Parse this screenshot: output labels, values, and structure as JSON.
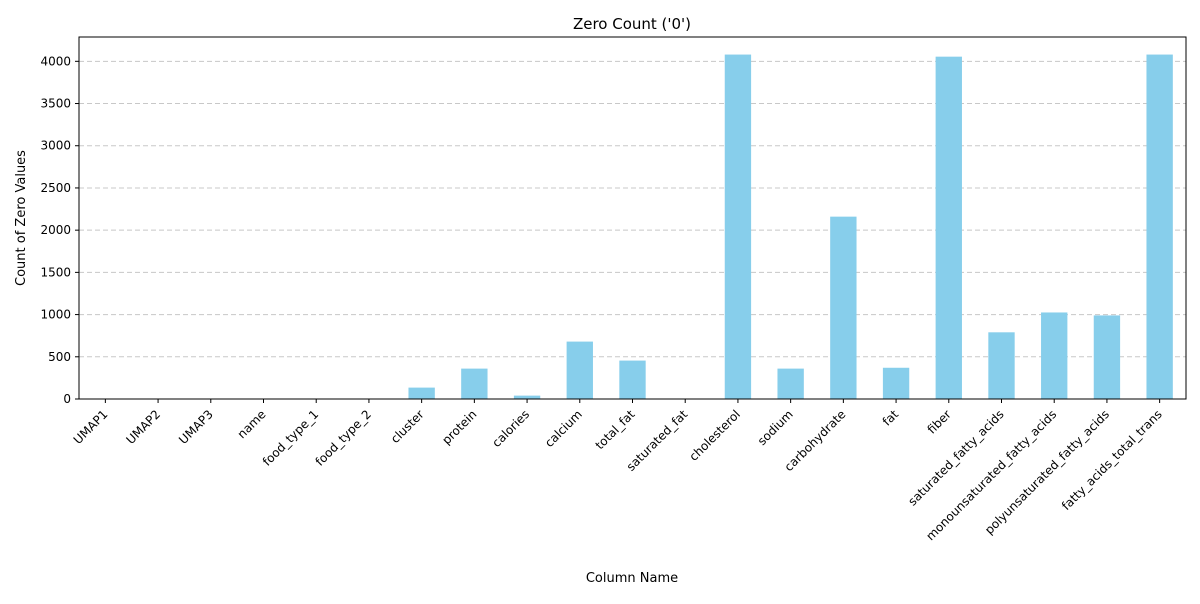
{
  "chart_data": {
    "type": "bar",
    "title": "Zero Count ('0')",
    "xlabel": "Column Name",
    "ylabel": "Count of Zero Values",
    "categories": [
      "UMAP1",
      "UMAP2",
      "UMAP3",
      "name",
      "food_type_1",
      "food_type_2",
      "cluster",
      "protein",
      "calories",
      "calcium",
      "total_fat",
      "saturated_fat",
      "cholesterol",
      "sodium",
      "carbohydrate",
      "fat",
      "fiber",
      "saturated_fatty_acids",
      "monounsaturated_fatty_acids",
      "polyunsaturated_fatty_acids",
      "fatty_acids_total_trans"
    ],
    "values": [
      0,
      0,
      0,
      0,
      0,
      0,
      135,
      360,
      40,
      680,
      455,
      0,
      4080,
      360,
      2160,
      370,
      4055,
      790,
      1025,
      990,
      4080
    ],
    "ylim": [
      0,
      4288
    ],
    "yticks": [
      0,
      500,
      1000,
      1500,
      2000,
      2500,
      3000,
      3500,
      4000
    ],
    "grid": "y-dashed",
    "bar_color": "#87ceeb",
    "grid_color": "#c8c8c8"
  }
}
